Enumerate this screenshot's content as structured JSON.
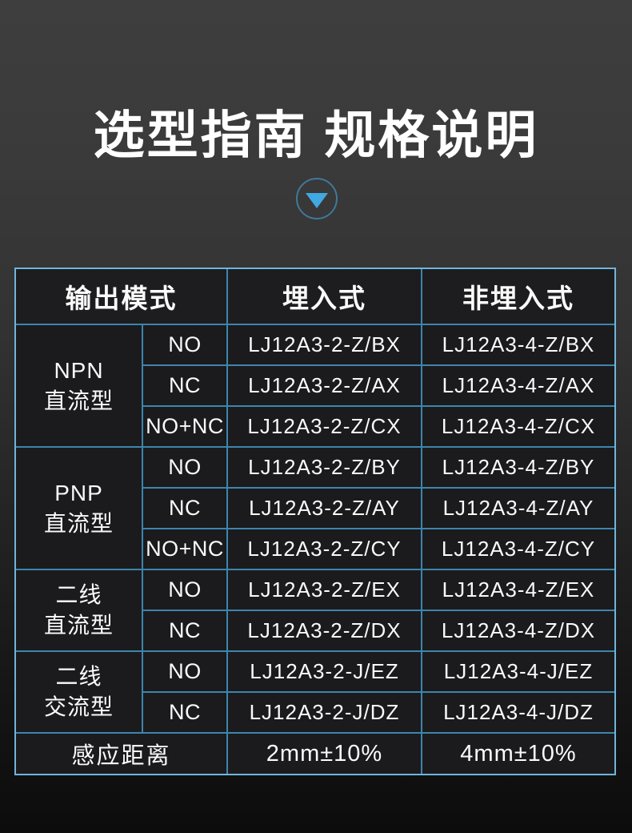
{
  "page": {
    "title": "选型指南 规格说明"
  },
  "colors": {
    "accent_blue": "#41a8e1",
    "grid_blue": "#3d85ad",
    "outer_border_blue": "#6fb5dc",
    "background_top": "#3e3e3e",
    "background_bottom": "#0c0c0c",
    "cell_background": "#1b1b1d",
    "text": "#ffffff"
  },
  "icons": {
    "scroll_down": "triangle-down-in-circle"
  },
  "table": {
    "headers": [
      "输出模式",
      "埋入式",
      "非埋入式"
    ],
    "groups": [
      {
        "line1": "NPN",
        "line2": "直流型",
        "rows": [
          {
            "mode": "NO",
            "flush": "LJ12A3-2-Z/BX",
            "nonflush": "LJ12A3-4-Z/BX"
          },
          {
            "mode": "NC",
            "flush": "LJ12A3-2-Z/AX",
            "nonflush": "LJ12A3-4-Z/AX"
          },
          {
            "mode": "NO+NC",
            "flush": "LJ12A3-2-Z/CX",
            "nonflush": "LJ12A3-4-Z/CX"
          }
        ]
      },
      {
        "line1": "PNP",
        "line2": "直流型",
        "rows": [
          {
            "mode": "NO",
            "flush": "LJ12A3-2-Z/BY",
            "nonflush": "LJ12A3-4-Z/BY"
          },
          {
            "mode": "NC",
            "flush": "LJ12A3-2-Z/AY",
            "nonflush": "LJ12A3-4-Z/AY"
          },
          {
            "mode": "NO+NC",
            "flush": "LJ12A3-2-Z/CY",
            "nonflush": "LJ12A3-4-Z/CY"
          }
        ]
      },
      {
        "line1": "二线",
        "line2": "直流型",
        "rows": [
          {
            "mode": "NO",
            "flush": "LJ12A3-2-Z/EX",
            "nonflush": "LJ12A3-4-Z/EX"
          },
          {
            "mode": "NC",
            "flush": "LJ12A3-2-Z/DX",
            "nonflush": "LJ12A3-4-Z/DX"
          }
        ]
      },
      {
        "line1": "二线",
        "line2": "交流型",
        "rows": [
          {
            "mode": "NO",
            "flush": "LJ12A3-2-J/EZ",
            "nonflush": "LJ12A3-4-J/EZ"
          },
          {
            "mode": "NC",
            "flush": "LJ12A3-2-J/DZ",
            "nonflush": "LJ12A3-4-J/DZ"
          }
        ]
      }
    ],
    "footer": {
      "label": "感应距离",
      "flush": "2mm±10%",
      "nonflush": "4mm±10%"
    }
  }
}
